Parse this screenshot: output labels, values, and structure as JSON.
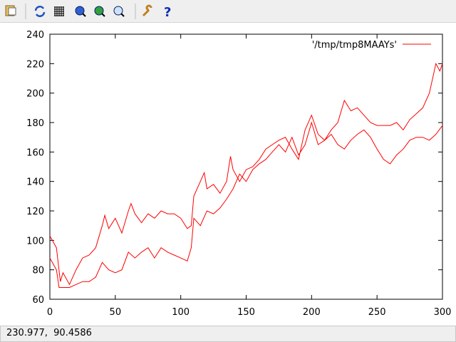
{
  "chart_data": {
    "type": "line",
    "x": [
      0,
      5,
      8,
      10,
      15,
      20,
      25,
      30,
      35,
      40,
      42,
      45,
      50,
      55,
      60,
      62,
      65,
      70,
      75,
      80,
      85,
      90,
      95,
      100,
      105,
      108,
      110,
      115,
      118,
      120,
      125,
      130,
      135,
      138,
      140,
      145,
      150,
      155,
      160,
      165,
      170,
      175,
      180,
      185,
      190,
      195,
      200,
      205,
      210,
      215,
      220,
      225,
      230,
      235,
      240,
      245,
      250,
      255,
      260,
      265,
      270,
      275,
      280,
      285,
      290,
      295,
      298,
      300,
      null,
      0,
      5,
      7,
      10,
      15,
      20,
      25,
      30,
      35,
      40,
      45,
      50,
      55,
      60,
      65,
      70,
      75,
      80,
      85,
      90,
      95,
      100,
      105,
      108,
      110,
      115,
      120,
      125,
      130,
      135,
      140,
      145,
      150,
      155,
      160,
      165,
      170,
      175,
      180,
      185,
      190,
      195,
      200,
      205,
      210,
      215,
      220,
      225,
      230,
      235,
      240,
      245,
      250,
      255,
      260,
      265,
      270,
      275,
      280,
      285,
      290,
      295,
      300
    ],
    "series": [
      {
        "name": "'/tmp/tmp8MAAYs'",
        "color": "#ff0000",
        "values": [
          103,
          95,
          72,
          78,
          70,
          80,
          88,
          90,
          95,
          110,
          117,
          108,
          115,
          105,
          120,
          125,
          118,
          112,
          118,
          115,
          120,
          118,
          118,
          115,
          108,
          110,
          130,
          140,
          146,
          135,
          138,
          132,
          140,
          157,
          148,
          140,
          148,
          150,
          155,
          162,
          165,
          168,
          170,
          162,
          155,
          175,
          185,
          172,
          168,
          175,
          180,
          195,
          188,
          190,
          185,
          180,
          178,
          178,
          178,
          180,
          175,
          182,
          186,
          190,
          200,
          220,
          215,
          220,
          null,
          88,
          80,
          68,
          68,
          68,
          70,
          72,
          72,
          75,
          85,
          80,
          78,
          80,
          92,
          88,
          92,
          95,
          88,
          95,
          92,
          90,
          88,
          86,
          95,
          115,
          110,
          120,
          118,
          122,
          128,
          135,
          145,
          140,
          148,
          152,
          155,
          160,
          165,
          160,
          170,
          158,
          165,
          180,
          165,
          168,
          172,
          165,
          162,
          168,
          172,
          175,
          170,
          162,
          155,
          152,
          158,
          162,
          168,
          170,
          170,
          168,
          172,
          178
        ]
      }
    ],
    "xlim": [
      0,
      300
    ],
    "ylim": [
      60,
      240
    ],
    "xticks": [
      0,
      50,
      100,
      150,
      200,
      250,
      300
    ],
    "yticks": [
      60,
      80,
      100,
      120,
      140,
      160,
      180,
      200,
      220,
      240
    ],
    "grid": false,
    "legend": "top-right"
  },
  "statusbar": {
    "text": "230.977,  90.4586"
  }
}
